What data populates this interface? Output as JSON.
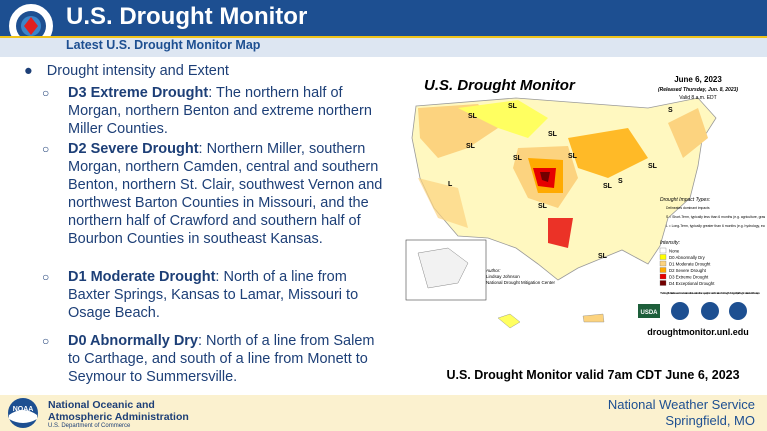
{
  "header": {
    "title": "U.S. Drought Monitor",
    "subtitle": "Latest U.S. Drought Monitor Map"
  },
  "bullet": {
    "text": "Drought intensity and Extent",
    "items": [
      {
        "term": "D3 Extreme Drought",
        "text": ": The northern half of Morgan, northern Benton and extreme northern Miller Counties."
      },
      {
        "term": "D2 Severe Drought",
        "text": ": Northern Miller, southern Morgan, northern Camden, central and southern Benton, northern St. Clair, southwest Vernon and northwest Barton Counties in Missouri, and the northern half of Crawford and southern half of Bourbon Counties in southeast Kansas."
      },
      {
        "term": "D1 Moderate Drought",
        "text": ": North of a line from Baxter Springs, Kansas to Lamar, Missouri to Osage Beach."
      },
      {
        "term": "D0 Abnormally Dry",
        "text": ": North of a line from Salem to Carthage, and south of a line from Monett to Seymour to Summersville."
      }
    ]
  },
  "map": {
    "title": "U.S. Drought Monitor",
    "date": "June 6, 2023",
    "released": "(Released Thursday, Jun. 8, 2023)",
    "valid": "Valid 8 a.m. EDT",
    "labels": [
      "SL",
      "SL",
      "S",
      "SL",
      "SL",
      "SL",
      "L",
      "SL",
      "S",
      "SL",
      "SL",
      "SL",
      "SL"
    ],
    "impact_title": "Drought Impact Types:",
    "impacts": [
      "Delineates dominant impacts",
      "S = Short-Term, typically less than 6 months (e.g. agriculture, grasslands)",
      "L = Long-Term, typically greater than 6 months (e.g. hydrology, ecology)"
    ],
    "intensity_title": "Intensity:",
    "legend": [
      {
        "label": "None",
        "color": "#ffffff"
      },
      {
        "label": "D0 Abnormally Dry",
        "color": "#ffff00"
      },
      {
        "label": "D1 Moderate Drought",
        "color": "#fcd37f"
      },
      {
        "label": "D2 Severe Drought",
        "color": "#ffaa00"
      },
      {
        "label": "D3 Extreme Drought",
        "color": "#e60000"
      },
      {
        "label": "D4 Exceptional Drought",
        "color": "#730000"
      }
    ],
    "note": "The Drought Monitor focuses on broad-scale conditions. Local conditions may vary. For more information on the Drought Monitor, go to https://droughtmonitor.unl.edu/About.aspx",
    "author": [
      "Author:",
      "Lindsay Johnson",
      "National Drought Mitigation Center"
    ],
    "logo": "USDA",
    "url": "droughtmonitor.unl.edu",
    "caption": "U.S. Drought Monitor valid 7am CDT June 6, 2023"
  },
  "footer": {
    "org": [
      "National Oceanic and",
      "Atmospheric Administration"
    ],
    "dept": "U.S. Department of Commerce",
    "logo": "NOAA",
    "office": [
      "National Weather Service",
      "Springfield, MO"
    ]
  }
}
